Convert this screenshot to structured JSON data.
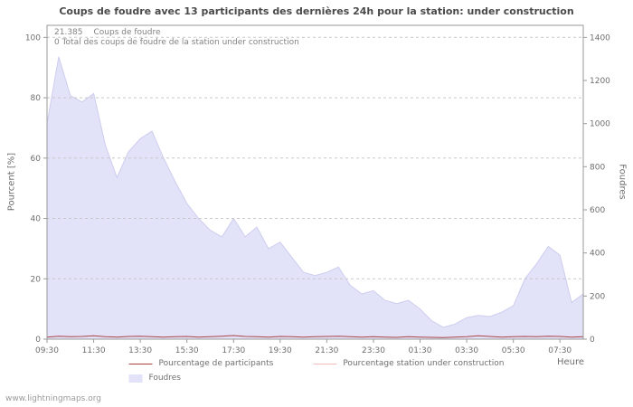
{
  "title": "Coups de foudre avec 13 participants des dernières 24h pour la station: under construction",
  "annotation": {
    "total_value": "21.385",
    "total_label": "Coups de foudre",
    "station_total": "0 Total des coups de foudre de la station under construction"
  },
  "watermark": "www.lightningmaps.org",
  "colors": {
    "area": "#e2e2f9",
    "area_border": "#cdcdee",
    "participants_line": "#aa4444",
    "station_line": "#f2bcbc",
    "grid": "#c8c8c8",
    "axis": "#9a9a9a",
    "text": "#6e6e6e"
  },
  "legend": [
    {
      "label": "Pourcentage de participants",
      "color": "#aa4444",
      "type": "line"
    },
    {
      "label": "Pourcentage station under construction",
      "color": "#f2bcbc",
      "type": "line"
    },
    {
      "label": "Foudres",
      "color": "#e2e2f9",
      "type": "area"
    }
  ],
  "chart_data": {
    "type": "area",
    "title": "Coups de foudre avec 13 participants des dernières 24h pour la station: under construction",
    "xlabel": "Heure",
    "ylabel_left": "Pourcent  [%]",
    "ylabel_right": "Foudres",
    "grid": true,
    "legend_position": "bottom",
    "x_ticks": [
      "09:30",
      "11:30",
      "13:30",
      "15:30",
      "17:30",
      "19:30",
      "21:30",
      "23:30",
      "01:30",
      "03:30",
      "05:30",
      "07:30"
    ],
    "y_ticks_left": [
      0,
      20,
      40,
      60,
      80,
      100
    ],
    "y_ticks_right": [
      0,
      200,
      400,
      600,
      800,
      1000,
      1200,
      1400
    ],
    "ylim_left": [
      0,
      104
    ],
    "ylim_right": [
      0,
      1456
    ],
    "x": [
      "09:30",
      "10:00",
      "10:30",
      "11:00",
      "11:30",
      "12:00",
      "12:30",
      "13:00",
      "13:30",
      "14:00",
      "14:30",
      "15:00",
      "15:30",
      "16:00",
      "16:30",
      "17:00",
      "17:30",
      "18:00",
      "18:30",
      "19:00",
      "19:30",
      "20:00",
      "20:30",
      "21:00",
      "21:30",
      "22:00",
      "22:30",
      "23:00",
      "23:30",
      "00:00",
      "00:30",
      "01:00",
      "01:30",
      "02:00",
      "02:30",
      "03:00",
      "03:30",
      "04:00",
      "04:30",
      "05:00",
      "05:30",
      "06:00",
      "06:30",
      "07:00",
      "07:30",
      "08:00",
      "08:30"
    ],
    "series": [
      {
        "name": "Foudres",
        "axis": "right",
        "type": "area",
        "color": "#e2e2f9",
        "border_color": "#cdcdee",
        "values": [
          1000,
          1310,
          1130,
          1100,
          1140,
          900,
          750,
          870,
          930,
          965,
          840,
          730,
          630,
          560,
          505,
          475,
          560,
          475,
          520,
          420,
          450,
          380,
          310,
          295,
          310,
          335,
          250,
          210,
          225,
          180,
          165,
          180,
          140,
          85,
          55,
          70,
          100,
          110,
          105,
          125,
          155,
          280,
          350,
          430,
          390,
          170,
          210
        ]
      },
      {
        "name": "Pourcentage de participants",
        "axis": "left",
        "type": "line",
        "color": "#aa4444",
        "values": [
          0.7,
          1.0,
          0.8,
          0.9,
          1.1,
          0.8,
          0.7,
          0.9,
          1.0,
          0.8,
          0.7,
          0.8,
          0.9,
          0.7,
          0.8,
          1.0,
          1.2,
          0.9,
          0.8,
          0.7,
          0.9,
          0.8,
          0.7,
          0.8,
          0.9,
          1.0,
          0.8,
          0.7,
          0.8,
          0.7,
          0.6,
          0.8,
          0.7,
          0.6,
          0.5,
          0.7,
          0.8,
          1.1,
          0.9,
          0.7,
          0.8,
          0.9,
          0.8,
          1.0,
          0.9,
          0.7,
          0.8
        ]
      },
      {
        "name": "Pourcentage station under construction",
        "axis": "left",
        "type": "line",
        "color": "#f2bcbc",
        "values": [
          0,
          0,
          0,
          0,
          0,
          0,
          0,
          0,
          0,
          0,
          0,
          0,
          0,
          0,
          0,
          0,
          0,
          0,
          0,
          0,
          0,
          0,
          0,
          0,
          0,
          0,
          0,
          0,
          0,
          0,
          0,
          0,
          0,
          0,
          0,
          0,
          0,
          0,
          0,
          0,
          0,
          0,
          0,
          0,
          0,
          0,
          0
        ]
      }
    ]
  }
}
